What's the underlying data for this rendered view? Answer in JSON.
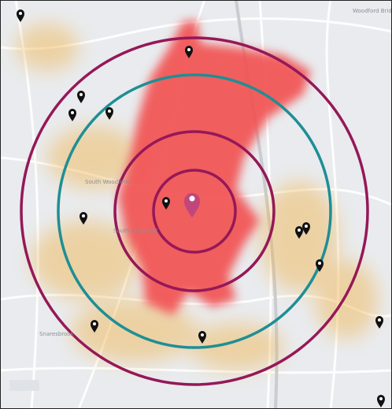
{
  "map": {
    "place_labels": [
      "Woodford Bridg",
      "South Woodford",
      "South Woodford",
      "Snaresbrook"
    ]
  }
}
